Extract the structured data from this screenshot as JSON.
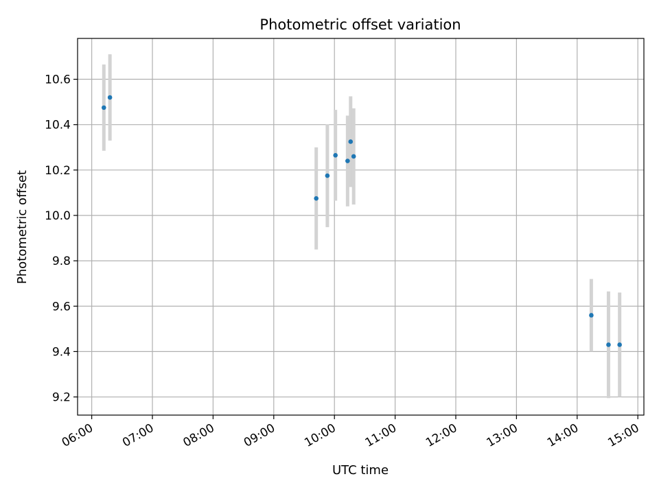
{
  "chart_data": {
    "type": "scatter",
    "title": "Photometric offset variation",
    "xlabel": "UTC time",
    "ylabel": "Photometric offset",
    "x_is_time": true,
    "xlim": [
      "05:46",
      "15:06"
    ],
    "ylim": [
      9.12,
      10.78
    ],
    "x_ticks": [
      "06:00",
      "07:00",
      "08:00",
      "09:00",
      "10:00",
      "11:00",
      "12:00",
      "13:00",
      "14:00",
      "15:00"
    ],
    "y_ticks": [
      "9.2",
      "9.4",
      "9.6",
      "9.8",
      "10.0",
      "10.2",
      "10.4",
      "10.6"
    ],
    "grid": true,
    "colors": {
      "point": "#1f77b4",
      "errorbar": "#d3d3d3",
      "grid": "#b0b0b0"
    },
    "series": [
      {
        "points": [
          {
            "x": "06:12",
            "y": 10.475,
            "err": 0.19
          },
          {
            "x": "06:18",
            "y": 10.52,
            "err": 0.19
          },
          {
            "x": "09:42",
            "y": 10.075,
            "err": 0.225
          },
          {
            "x": "09:53",
            "y": 10.175,
            "err": 0.227
          },
          {
            "x": "10:01",
            "y": 10.265,
            "err": 0.2
          },
          {
            "x": "10:13",
            "y": 10.24,
            "err": 0.2
          },
          {
            "x": "10:16",
            "y": 10.325,
            "err": 0.2
          },
          {
            "x": "10:19",
            "y": 10.26,
            "err": 0.212
          },
          {
            "x": "14:14",
            "y": 9.56,
            "err": 0.16
          },
          {
            "x": "14:31",
            "y": 9.43,
            "err": 0.235
          },
          {
            "x": "14:42",
            "y": 9.43,
            "err": 0.23
          }
        ]
      }
    ]
  }
}
